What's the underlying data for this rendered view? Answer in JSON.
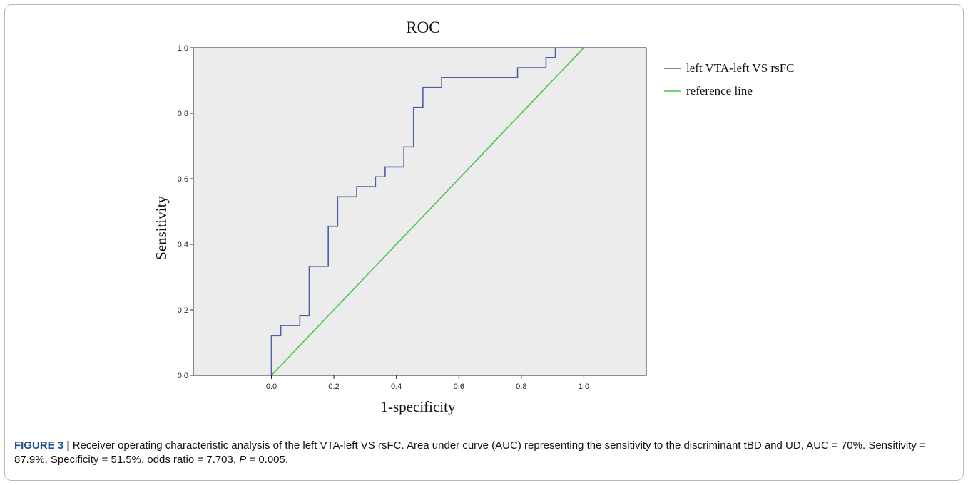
{
  "chart_data": {
    "type": "line",
    "title": "ROC",
    "xlabel": "1-specificity",
    "ylabel": "Sensitivity",
    "xlim": [
      -0.25,
      1.2
    ],
    "ylim": [
      0,
      1.0
    ],
    "x_ticks": [
      "0.0",
      "0.2",
      "0.4",
      "0.6",
      "0.8",
      "1.0"
    ],
    "y_ticks": [
      "0.0",
      "0.2",
      "0.4",
      "0.6",
      "0.8",
      "1.0"
    ],
    "grid": false,
    "background": "#ececec",
    "legend_position": "right",
    "series": [
      {
        "name": "left VTA-left VS rsFC",
        "color": "#4a5fa8",
        "x": [
          0.0,
          0.0,
          0.03,
          0.03,
          0.091,
          0.091,
          0.121,
          0.121,
          0.182,
          0.182,
          0.212,
          0.212,
          0.273,
          0.273,
          0.333,
          0.333,
          0.364,
          0.364,
          0.424,
          0.424,
          0.455,
          0.455,
          0.485,
          0.485,
          0.545,
          0.545,
          0.788,
          0.788,
          0.879,
          0.879,
          0.909,
          0.909,
          1.0
        ],
        "y": [
          0.0,
          0.121,
          0.121,
          0.152,
          0.152,
          0.182,
          0.182,
          0.333,
          0.333,
          0.455,
          0.455,
          0.545,
          0.545,
          0.576,
          0.576,
          0.606,
          0.606,
          0.636,
          0.636,
          0.697,
          0.697,
          0.818,
          0.818,
          0.879,
          0.879,
          0.909,
          0.909,
          0.939,
          0.939,
          0.97,
          0.97,
          1.0,
          1.0
        ]
      },
      {
        "name": "reference line",
        "color": "#4cc24c",
        "x": [
          0.0,
          1.0
        ],
        "y": [
          0.0,
          1.0
        ]
      }
    ]
  },
  "caption": {
    "label": "FIGURE 3 |",
    "text_1": " Receiver operating characteristic analysis of the left VTA-left VS rsFC. Area under curve (AUC) representing the sensitivity to the discriminant tBD and UD, AUC = 70%. Sensitivity = 87.9%, Specificity = 51.5%, odds ratio = 7.703, ",
    "p_symbol": "P",
    "text_2": " = 0.005."
  }
}
